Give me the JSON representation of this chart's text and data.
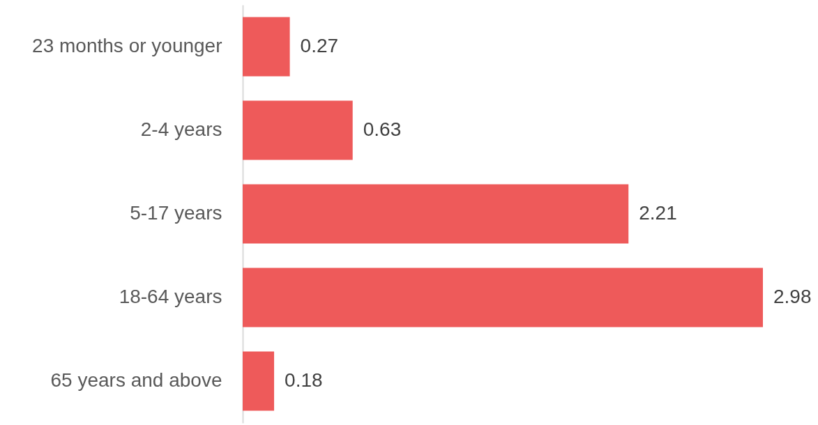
{
  "chart_data": {
    "type": "bar",
    "orientation": "horizontal",
    "categories": [
      "23 months or younger",
      "2-4 years",
      "5-17 years",
      "18-64 years",
      "65 years and above"
    ],
    "values": [
      0.27,
      0.63,
      2.21,
      2.98,
      0.18
    ],
    "color": "#ee5a5a",
    "data_labels": true,
    "tick_labels": "y"
  }
}
